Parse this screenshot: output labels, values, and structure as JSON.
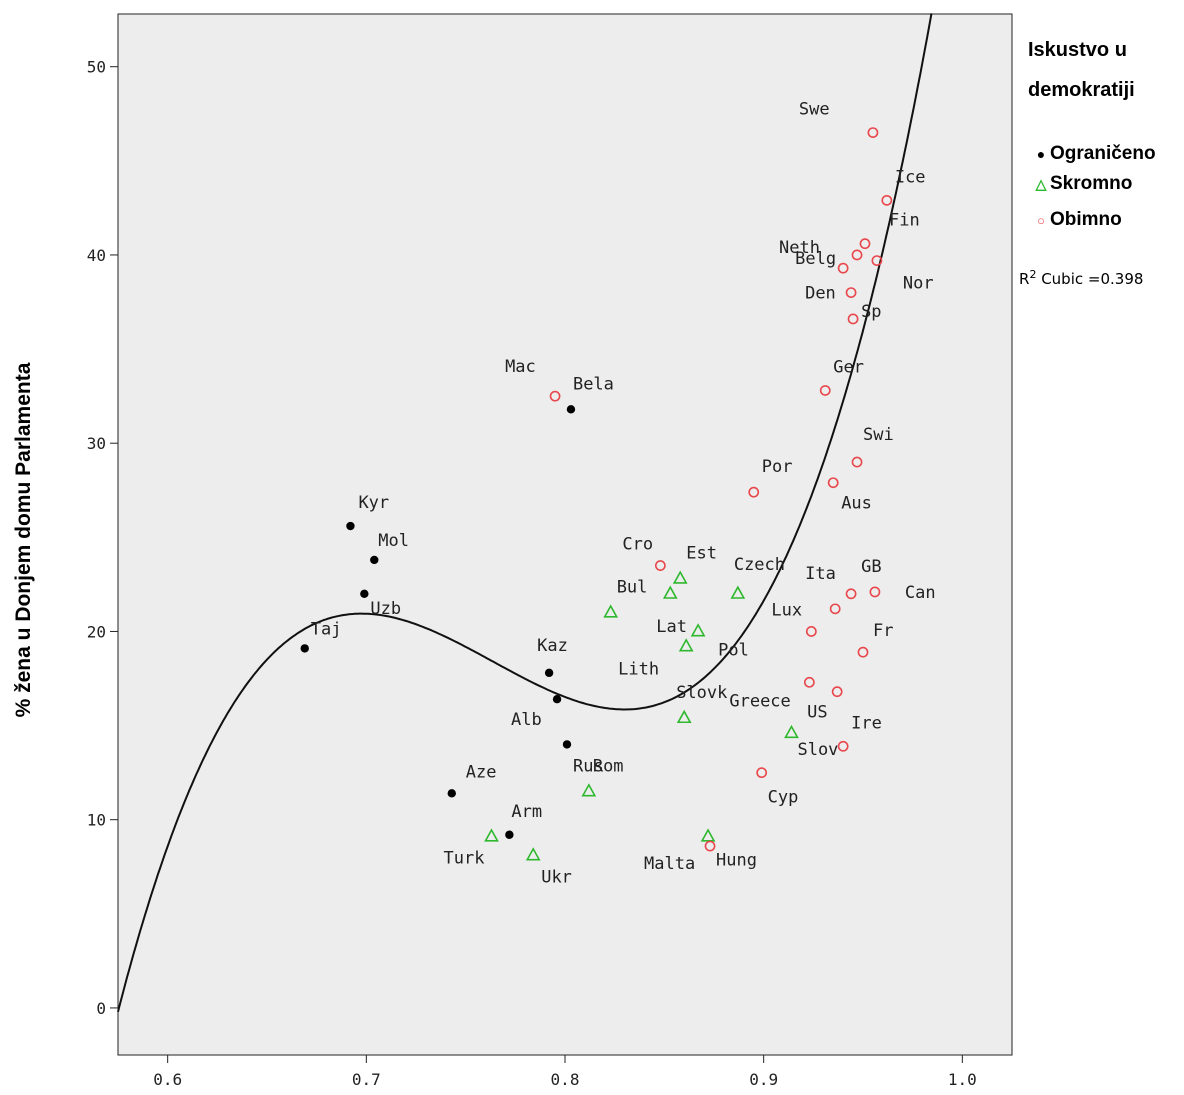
{
  "chart_data": {
    "type": "scatter",
    "title": "",
    "xlabel": "",
    "ylabel": "% žena u Donjem domu Parlamenta",
    "xlim": [
      0.575,
      1.025
    ],
    "ylim": [
      -2.5,
      52.8
    ],
    "xticks": [
      "0.6",
      "0.7",
      "0.8",
      "0.9",
      "1.0"
    ],
    "yticks": [
      "0",
      "10",
      "20",
      "30",
      "40",
      "50"
    ],
    "grid": false,
    "legend_position": "right",
    "legend_title": "Iskustvo u demokratiji",
    "fit": {
      "label_prefix": "R",
      "label_sup": "2",
      "label_text": " Cubic =0.398",
      "type": "cubic",
      "r2": 0.398
    },
    "colors": {
      "Ograničeno": "#000000",
      "Skromno": "#2eb82e",
      "Obimno": "#e8474c",
      "background": "#ededed"
    },
    "series": [
      {
        "name": "Ograničeno",
        "marker": "dot",
        "points": [
          {
            "label": "Kyr",
            "x": 0.692,
            "y": 25.6
          },
          {
            "label": "Mol",
            "x": 0.704,
            "y": 23.8
          },
          {
            "label": "Uzb",
            "x": 0.699,
            "y": 22.0
          },
          {
            "label": "Taj",
            "x": 0.669,
            "y": 19.1
          },
          {
            "label": "Bela",
            "x": 0.803,
            "y": 31.8
          },
          {
            "label": "Kaz",
            "x": 0.792,
            "y": 17.8
          },
          {
            "label": "Alb",
            "x": 0.796,
            "y": 16.4
          },
          {
            "label": "Rus",
            "x": 0.801,
            "y": 14.0
          },
          {
            "label": "Aze",
            "x": 0.743,
            "y": 11.4
          },
          {
            "label": "Arm",
            "x": 0.772,
            "y": 9.2
          }
        ]
      },
      {
        "name": "Skromno",
        "marker": "triangle",
        "points": [
          {
            "label": "Est",
            "x": 0.858,
            "y": 22.8
          },
          {
            "label": "Lat",
            "x": 0.853,
            "y": 22.0
          },
          {
            "label": "Bul",
            "x": 0.823,
            "y": 21.0
          },
          {
            "label": "Czech",
            "x": 0.887,
            "y": 22.0
          },
          {
            "label": "Pol",
            "x": 0.867,
            "y": 20.0
          },
          {
            "label": "Lith",
            "x": 0.861,
            "y": 19.2
          },
          {
            "label": "Slovk",
            "x": 0.86,
            "y": 15.4
          },
          {
            "label": "Slov",
            "x": 0.914,
            "y": 14.6
          },
          {
            "label": "Rom",
            "x": 0.812,
            "y": 11.5
          },
          {
            "label": "Turk",
            "x": 0.763,
            "y": 9.1
          },
          {
            "label": "Ukr",
            "x": 0.784,
            "y": 8.1
          },
          {
            "label": "Hung",
            "x": 0.872,
            "y": 9.1
          }
        ]
      },
      {
        "name": "Obimno",
        "marker": "circle",
        "points": [
          {
            "label": "Swe",
            "x": 0.955,
            "y": 46.5
          },
          {
            "label": "Ice",
            "x": 0.962,
            "y": 42.9
          },
          {
            "label": "Neth",
            "x": 0.947,
            "y": 40.0
          },
          {
            "label": "Fin",
            "x": 0.951,
            "y": 40.6
          },
          {
            "label": "Belg",
            "x": 0.94,
            "y": 39.3
          },
          {
            "label": "Nor",
            "x": 0.957,
            "y": 39.7
          },
          {
            "label": "Den",
            "x": 0.944,
            "y": 38.0
          },
          {
            "label": "Sp",
            "x": 0.945,
            "y": 36.6
          },
          {
            "label": "Ger",
            "x": 0.931,
            "y": 32.8
          },
          {
            "label": "Mac",
            "x": 0.795,
            "y": 32.5
          },
          {
            "label": "Swi",
            "x": 0.947,
            "y": 29.0
          },
          {
            "label": "Aus",
            "x": 0.935,
            "y": 27.9
          },
          {
            "label": "Por",
            "x": 0.895,
            "y": 27.4
          },
          {
            "label": "Cro",
            "x": 0.848,
            "y": 23.5
          },
          {
            "label": "GB",
            "x": 0.944,
            "y": 22.0
          },
          {
            "label": "Can",
            "x": 0.956,
            "y": 22.1
          },
          {
            "label": "Ita",
            "x": 0.936,
            "y": 21.2
          },
          {
            "label": "Lux",
            "x": 0.924,
            "y": 20.0
          },
          {
            "label": "Fr",
            "x": 0.95,
            "y": 18.9
          },
          {
            "label": "Greece",
            "x": 0.923,
            "y": 17.3
          },
          {
            "label": "US",
            "x": 0.937,
            "y": 16.8
          },
          {
            "label": "Ire",
            "x": 0.94,
            "y": 13.9
          },
          {
            "label": "Cyp",
            "x": 0.899,
            "y": 12.5
          },
          {
            "label": "Malta",
            "x": 0.873,
            "y": 8.6
          }
        ]
      }
    ]
  }
}
